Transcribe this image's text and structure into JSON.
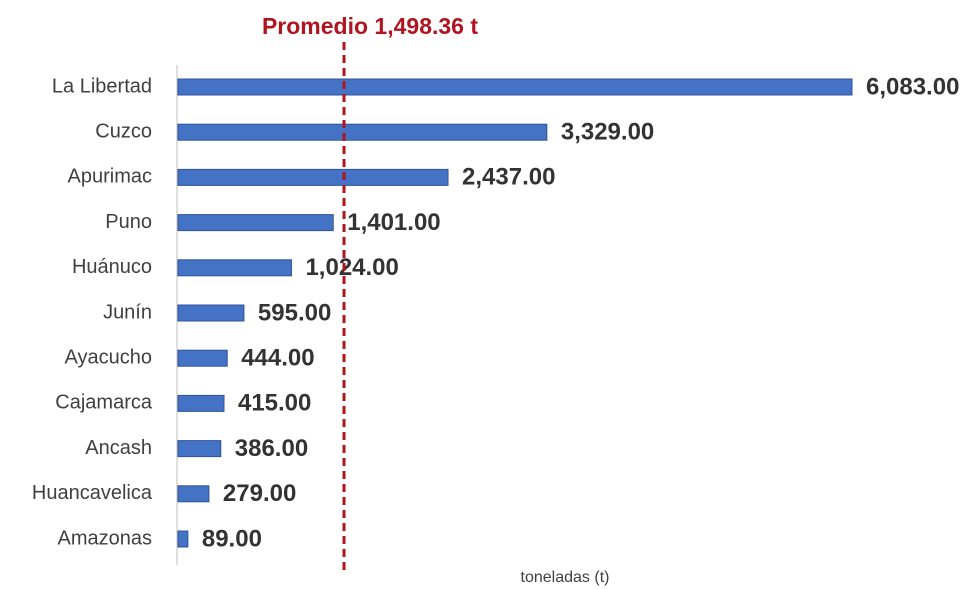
{
  "chart_data": {
    "type": "bar",
    "orientation": "horizontal",
    "annotation": "Promedio 1,498.36 t",
    "reference_value": 1498.36,
    "reference_color": "#b0151f",
    "x_label": "toneladas (t)",
    "categories": [
      "La Libertad",
      "Cuzco",
      "Apurimac",
      "Puno",
      "Huánuco",
      "Junín",
      "Ayacucho",
      "Cajamarca",
      "Ancash",
      "Huancavelica",
      "Amazonas"
    ],
    "values": [
      6083,
      3329,
      2437,
      1401,
      1024,
      595,
      444,
      415,
      386,
      279,
      89
    ],
    "value_labels": [
      "6,083.00",
      "3,329.00",
      "2,437.00",
      "1,401.00",
      "1,024.00",
      "595.00",
      "444.00",
      "415.00",
      "386.00",
      "279.00",
      "89.00"
    ],
    "color": "#4472c4",
    "xlim": [
      0,
      6083
    ]
  }
}
